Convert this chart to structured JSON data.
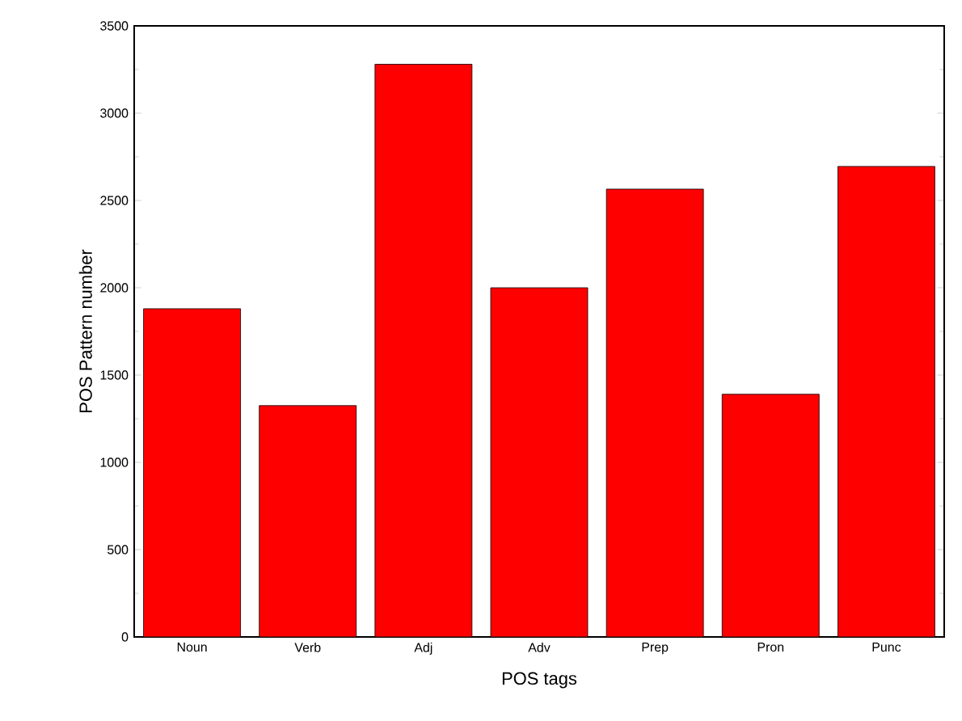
{
  "chart_data": {
    "type": "bar",
    "xlabel": "POS tags",
    "ylabel": "POS Pattern number",
    "categories": [
      "Noun",
      "Verb",
      "Adj",
      "Adv",
      "Prep",
      "Pron",
      "Punc"
    ],
    "values": [
      1880,
      1325,
      3280,
      2000,
      2565,
      1390,
      2695
    ],
    "color": "#ff0000",
    "ylim": [
      0,
      3500
    ],
    "yticks": [
      0,
      500,
      1000,
      1500,
      2000,
      2500,
      3000,
      3500
    ]
  }
}
